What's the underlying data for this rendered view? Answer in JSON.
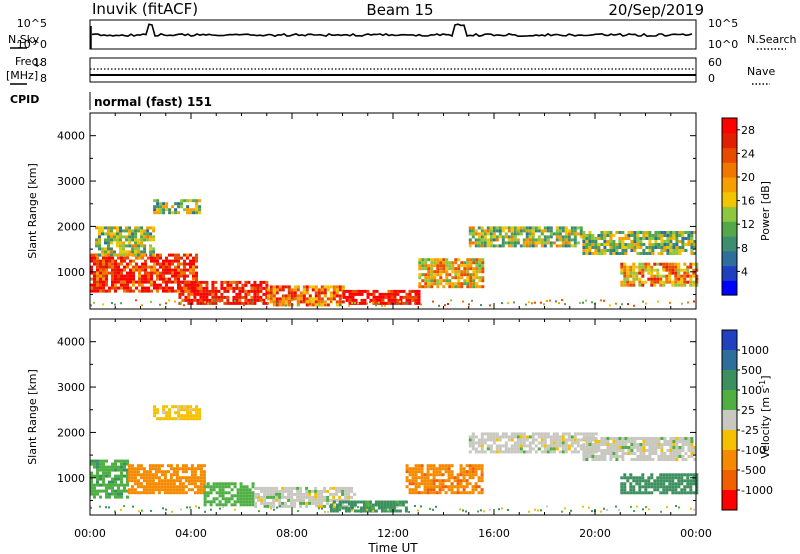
{
  "header": {
    "station": "Inuvik (fitACF)",
    "beam": "Beam 15",
    "date": "20/Sep/2019",
    "cpid_label": "CPID",
    "cpid_value": "normal (fast) 151"
  },
  "top_panels": {
    "nsky_label": "N.Sky",
    "nsky_ticks": [
      "10^5",
      "10^0"
    ],
    "nsearch_label": "N.Search",
    "nsearch_ticks": [
      "10^5",
      "10^0"
    ],
    "freq_label_1": "Freq.",
    "freq_label_2": "[MHz]",
    "freq_ticks": [
      "18",
      "8"
    ],
    "nave_label": "Nave",
    "nave_ticks": [
      "60",
      "0"
    ]
  },
  "colorbars": {
    "power": {
      "label": "Power [dB]",
      "ticks": [
        "28",
        "24",
        "20",
        "16",
        "12",
        "8",
        "4"
      ],
      "colors": [
        "#0000ff",
        "#1f3fbf",
        "#2e6e9a",
        "#3b8f70",
        "#55a84a",
        "#8ec63f",
        "#f2c500",
        "#f5a000",
        "#f07800",
        "#e84a00",
        "#e02000",
        "#ff0000"
      ]
    },
    "velocity": {
      "label": "Velocity [m s",
      "label_sup": "-1",
      "label_end": "]",
      "ticks": [
        "1000",
        "500",
        "100",
        "25",
        "-25",
        "-100",
        "-500",
        "-1000"
      ],
      "colors": [
        "#2040c0",
        "#2e6e9a",
        "#3c8f5e",
        "#4eb043",
        "#c8c8c0",
        "#f5c000",
        "#f58a00",
        "#f06000",
        "#ff0000"
      ]
    }
  },
  "axes": {
    "ylabel": "Slant Range [km]",
    "yticks": [
      "4000",
      "3000",
      "2000",
      "1000"
    ],
    "xlabel": "Time UT",
    "xticks": [
      "00:00",
      "04:00",
      "08:00",
      "12:00",
      "16:00",
      "20:00",
      "00:00"
    ]
  },
  "chart_data": [
    {
      "type": "heatmap",
      "title": "",
      "xlabel": "",
      "ylabel": "Slant Range [km]",
      "xlim": [
        0,
        24
      ],
      "ylim": [
        180,
        4500
      ],
      "color_label": "Power [dB]",
      "color_range": [
        0,
        30
      ],
      "echo_regions": [
        {
          "t": [
            0.0,
            4.2
          ],
          "r": [
            600,
            1400
          ],
          "value": 26
        },
        {
          "t": [
            0.2,
            2.5
          ],
          "r": [
            1400,
            2000
          ],
          "value": 14
        },
        {
          "t": [
            2.5,
            4.3
          ],
          "r": [
            2300,
            2600
          ],
          "value": 13
        },
        {
          "t": [
            3.5,
            7.0
          ],
          "r": [
            300,
            800
          ],
          "value": 28
        },
        {
          "t": [
            7.0,
            10.0
          ],
          "r": [
            300,
            700
          ],
          "value": 22
        },
        {
          "t": [
            10.0,
            13.0
          ],
          "r": [
            280,
            600
          ],
          "value": 29
        },
        {
          "t": [
            13.0,
            15.5
          ],
          "r": [
            700,
            1300
          ],
          "value": 18
        },
        {
          "t": [
            15.0,
            19.5
          ],
          "r": [
            1600,
            2000
          ],
          "value": 14
        },
        {
          "t": [
            19.5,
            24.0
          ],
          "r": [
            1400,
            1900
          ],
          "value": 13
        },
        {
          "t": [
            21.0,
            24.0
          ],
          "r": [
            700,
            1200
          ],
          "value": 20
        }
      ]
    },
    {
      "type": "heatmap",
      "title": "",
      "xlabel": "Time UT",
      "ylabel": "Slant Range [km]",
      "xlim": [
        0,
        24
      ],
      "ylim": [
        180,
        4500
      ],
      "color_label": "Velocity [m s-1]",
      "color_range": [
        -1000,
        1000
      ],
      "echo_regions": [
        {
          "t": [
            0.0,
            1.5
          ],
          "r": [
            600,
            1400
          ],
          "value": 80
        },
        {
          "t": [
            1.5,
            4.5
          ],
          "r": [
            700,
            1300
          ],
          "value": -300
        },
        {
          "t": [
            2.5,
            4.3
          ],
          "r": [
            2300,
            2600
          ],
          "value": -50
        },
        {
          "t": [
            4.5,
            6.5
          ],
          "r": [
            400,
            900
          ],
          "value": 60
        },
        {
          "t": [
            6.5,
            10.5
          ],
          "r": [
            400,
            800
          ],
          "value": 0
        },
        {
          "t": [
            9.5,
            12.5
          ],
          "r": [
            280,
            500
          ],
          "value": 150
        },
        {
          "t": [
            12.5,
            15.5
          ],
          "r": [
            700,
            1300
          ],
          "value": -400
        },
        {
          "t": [
            15.0,
            20.0
          ],
          "r": [
            1600,
            2000
          ],
          "value": 0
        },
        {
          "t": [
            19.5,
            24.0
          ],
          "r": [
            1400,
            1900
          ],
          "value": 0
        },
        {
          "t": [
            21.0,
            24.0
          ],
          "r": [
            700,
            1100
          ],
          "value": 200
        }
      ]
    }
  ]
}
